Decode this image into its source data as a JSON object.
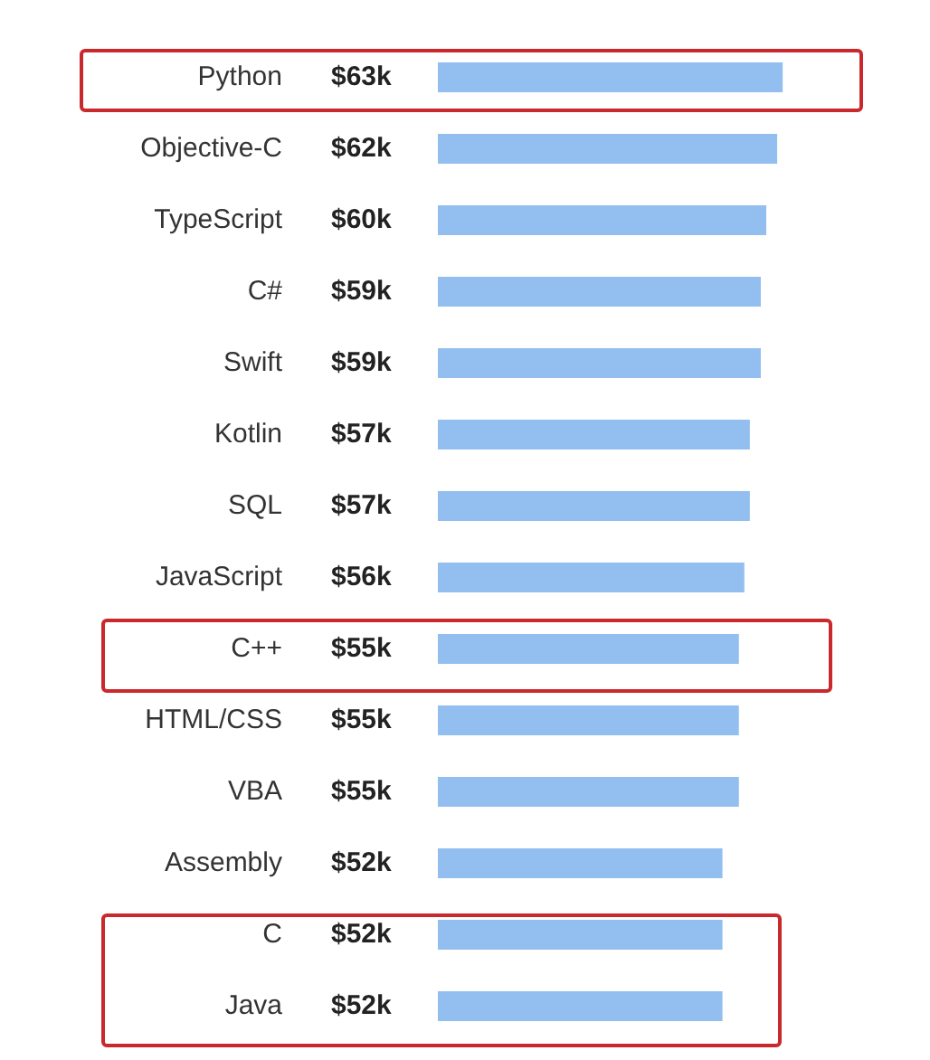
{
  "chart_data": {
    "type": "bar",
    "orientation": "horizontal",
    "categories": [
      "Python",
      "Objective-C",
      "TypeScript",
      "C#",
      "Swift",
      "Kotlin",
      "SQL",
      "JavaScript",
      "C++",
      "HTML/CSS",
      "VBA",
      "Assembly",
      "C",
      "Java"
    ],
    "values": [
      63,
      62,
      60,
      59,
      59,
      57,
      57,
      56,
      55,
      55,
      55,
      52,
      52,
      52
    ],
    "value_labels": [
      "$63k",
      "$62k",
      "$60k",
      "$59k",
      "$59k",
      "$57k",
      "$57k",
      "$56k",
      "$55k",
      "$55k",
      "$55k",
      "$52k",
      "$52k",
      "$52k"
    ],
    "color": "#92bff0",
    "grid": false,
    "legend": false
  }
}
